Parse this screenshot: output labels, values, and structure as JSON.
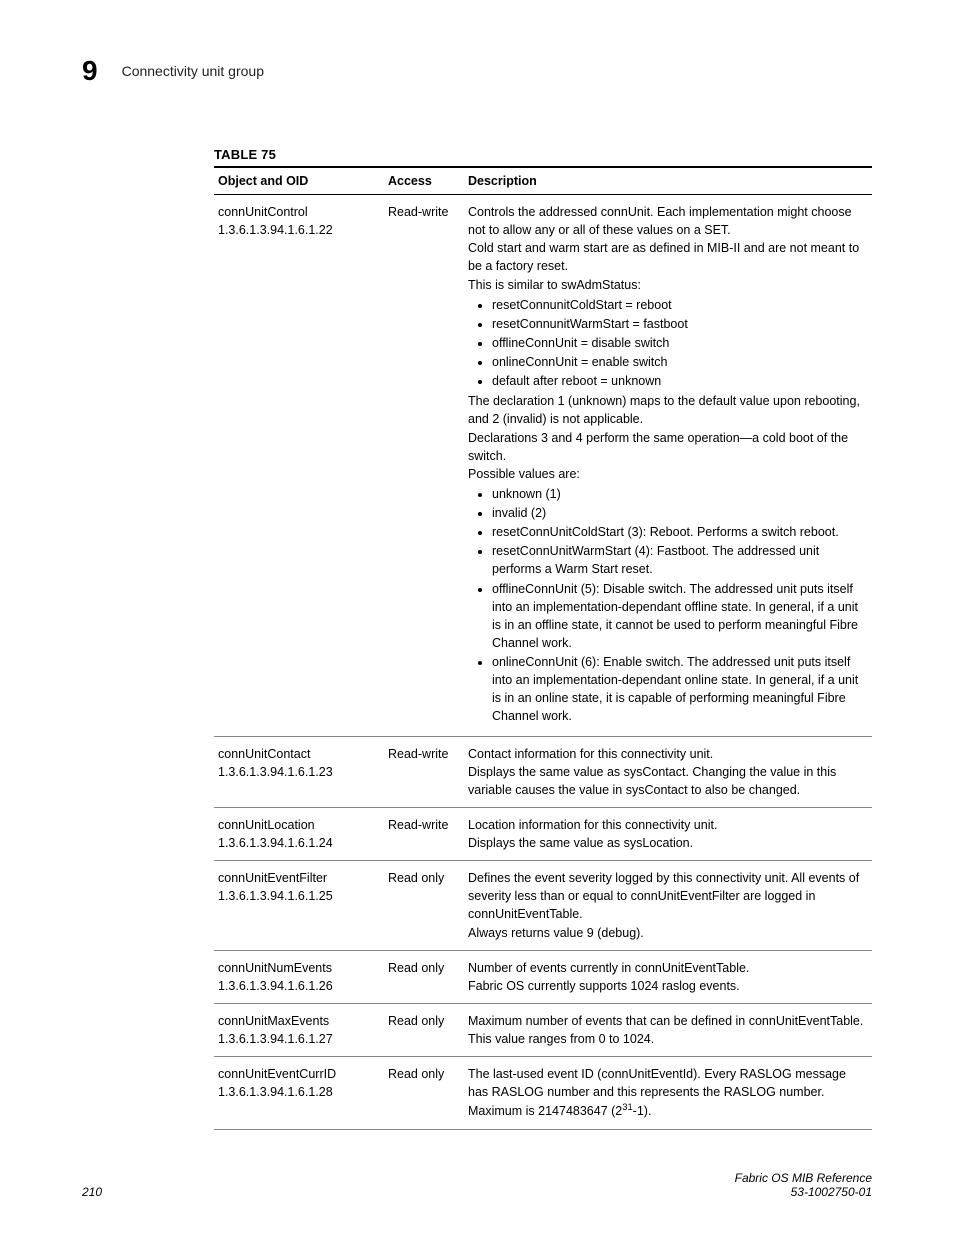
{
  "header": {
    "chapter_number": "9",
    "section_title": "Connectivity unit group"
  },
  "table": {
    "caption": "TABLE 75",
    "columns": [
      "Object and OID",
      "Access",
      "Description"
    ],
    "rows": [
      {
        "name": "connUnitControl",
        "oid": "1.3.6.1.3.94.1.6.1.22",
        "access": "Read-write",
        "desc": {
          "p1": "Controls the addressed connUnit. Each implementation might choose not to allow any or all of these values on a SET.",
          "p2": "Cold start and warm start are as defined in MIB-II and are not meant to be a factory reset.",
          "p3": "This is similar to swAdmStatus:",
          "list1": [
            "resetConnunitColdStart = reboot",
            "resetConnunitWarmStart = fastboot",
            "offlineConnUnit = disable switch",
            "onlineConnUnit = enable switch",
            "default after reboot = unknown"
          ],
          "p4": "The declaration 1 (unknown) maps to the default value upon rebooting, and 2 (invalid) is not applicable.",
          "p5": "Declarations 3 and 4 perform the same operation—a cold boot of the switch.",
          "p6": "Possible values are:",
          "list2": [
            "unknown (1)",
            "invalid (2)",
            "resetConnUnitColdStart (3): Reboot. Performs a switch reboot.",
            "resetConnUnitWarmStart (4): Fastboot. The addressed unit performs a Warm Start reset.",
            "offlineConnUnit (5): Disable switch. The addressed unit puts itself into an implementation-dependant offline state. In general, if a unit is in an offline state, it cannot be used to perform meaningful Fibre Channel work.",
            "onlineConnUnit (6): Enable switch. The addressed unit puts itself into an implementation-dependant online state. In general, if a unit is in an online state, it is capable of performing meaningful Fibre Channel work."
          ]
        }
      },
      {
        "name": "connUnitContact",
        "oid": "1.3.6.1.3.94.1.6.1.23",
        "access": "Read-write",
        "desc": {
          "p1": "Contact information for this connectivity unit.",
          "p2": "Displays the same value as sysContact. Changing the value in this variable causes the value in sysContact to also be changed."
        }
      },
      {
        "name": "connUnitLocation",
        "oid": "1.3.6.1.3.94.1.6.1.24",
        "access": "Read-write",
        "desc": {
          "p1": "Location information for this connectivity unit.",
          "p2": "Displays the same value as sysLocation."
        }
      },
      {
        "name": "connUnitEventFilter",
        "oid": "1.3.6.1.3.94.1.6.1.25",
        "access": "Read only",
        "desc": {
          "p1": "Defines the event severity logged by this connectivity unit. All events of severity less than or equal to connUnitEventFilter are logged in connUnitEventTable.",
          "p2": "Always returns value 9 (debug)."
        }
      },
      {
        "name": "connUnitNumEvents",
        "oid": "1.3.6.1.3.94.1.6.1.26",
        "access": "Read only",
        "desc": {
          "p1": "Number of events currently in connUnitEventTable.",
          "p2": "Fabric OS currently supports 1024 raslog events."
        }
      },
      {
        "name": "connUnitMaxEvents",
        "oid": "1.3.6.1.3.94.1.6.1.27",
        "access": "Read only",
        "desc": {
          "p1": "Maximum number of events that can be defined in connUnitEventTable.",
          "p2": "This value ranges from 0 to 1024."
        }
      },
      {
        "name": "connUnitEventCurrID",
        "oid": "1.3.6.1.3.94.1.6.1.28",
        "access": "Read only",
        "desc": {
          "p1": "The last-used event ID (connUnitEventId). Every RASLOG message has RASLOG number and this represents the RASLOG number.",
          "p2_pre": "Maximum is 2147483647 (2",
          "p2_exp": "31",
          "p2_post": "-1)."
        }
      }
    ]
  },
  "footer": {
    "page_number": "210",
    "doc_title": "Fabric OS MIB Reference",
    "doc_id": "53-1002750-01"
  }
}
